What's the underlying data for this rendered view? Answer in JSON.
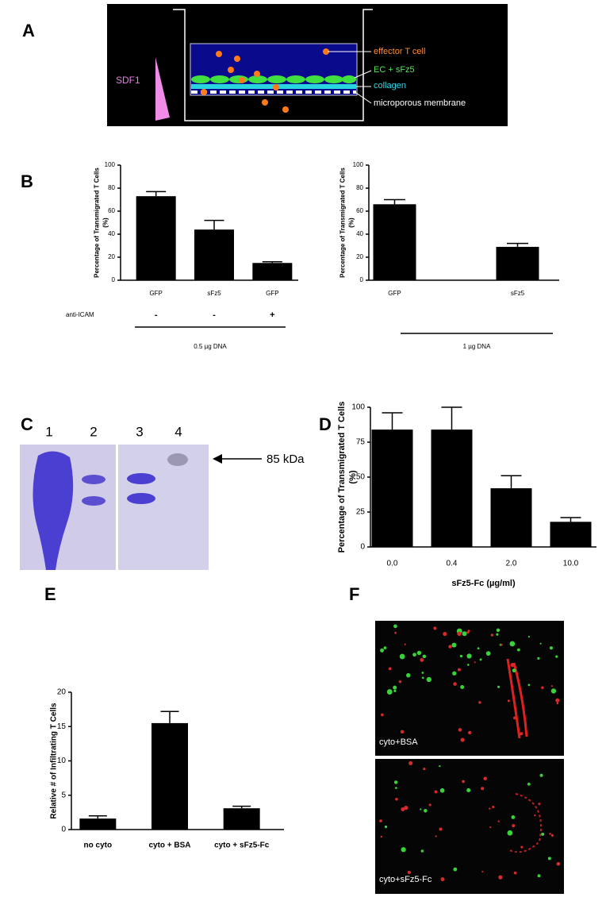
{
  "panel_labels": [
    "A",
    "B",
    "C",
    "D",
    "E",
    "F"
  ],
  "diagram": {
    "gradient_label": "SDF1",
    "labels": [
      "effector T cell",
      "EC + sFz5",
      "collagen",
      "microporous membrane"
    ]
  },
  "chart_data": [
    {
      "type": "bar",
      "ylabel": [
        "Percentage of Transmigrated T Cells",
        "(%)"
      ],
      "categories": [
        "GFP",
        "sFz5",
        "GFP"
      ],
      "values": [
        73,
        44,
        15
      ],
      "errors": [
        4,
        8,
        1
      ],
      "ylim": [
        0,
        100
      ],
      "yticks": [
        0,
        20,
        40,
        60,
        80,
        100
      ],
      "color": "#000000",
      "treatment_label": "anti-ICAM",
      "treatment": [
        "-",
        "-",
        "+"
      ],
      "group_label": "0.5 µg DNA"
    },
    {
      "type": "bar",
      "ylabel": [
        "Percentage of Transmigrated T Cells",
        "(%)"
      ],
      "categories": [
        "GFP",
        "sFz5"
      ],
      "values": [
        66,
        29
      ],
      "errors": [
        4,
        3
      ],
      "ylim": [
        0,
        100
      ],
      "yticks": [
        0,
        20,
        40,
        60,
        80,
        100
      ],
      "color": "#000000",
      "group_label": "1 µg DNA"
    },
    {
      "type": "bar",
      "ylabel": [
        "Percentage of Transmigrated T Cells",
        "(%)"
      ],
      "xlabel": "sFz5-Fc (µg/ml)",
      "categories": [
        "0.0",
        "0.4",
        "2.0",
        "10.0"
      ],
      "values": [
        84,
        84,
        42,
        18
      ],
      "errors": [
        12,
        16,
        9,
        3
      ],
      "ylim": [
        0,
        100
      ],
      "yticks": [
        0,
        25,
        50,
        75,
        100
      ],
      "color": "#000000"
    },
    {
      "type": "bar",
      "ylabel": [
        "Relative # of Infiltrating T Cells"
      ],
      "categories": [
        "no cyto",
        "cyto + BSA",
        "cyto + sFz5-Fc"
      ],
      "values": [
        1.6,
        15.5,
        3.1
      ],
      "errors": [
        0.4,
        1.7,
        0.3
      ],
      "ylim": [
        0,
        20
      ],
      "yticks": [
        0,
        5,
        10,
        15,
        20
      ],
      "color": "#000000"
    }
  ],
  "gel": {
    "lanes": [
      "1",
      "2",
      "3",
      "4"
    ],
    "marker": "85 kDa"
  },
  "micrographs": [
    "cyto+BSA",
    "cyto+sFz5-Fc"
  ]
}
